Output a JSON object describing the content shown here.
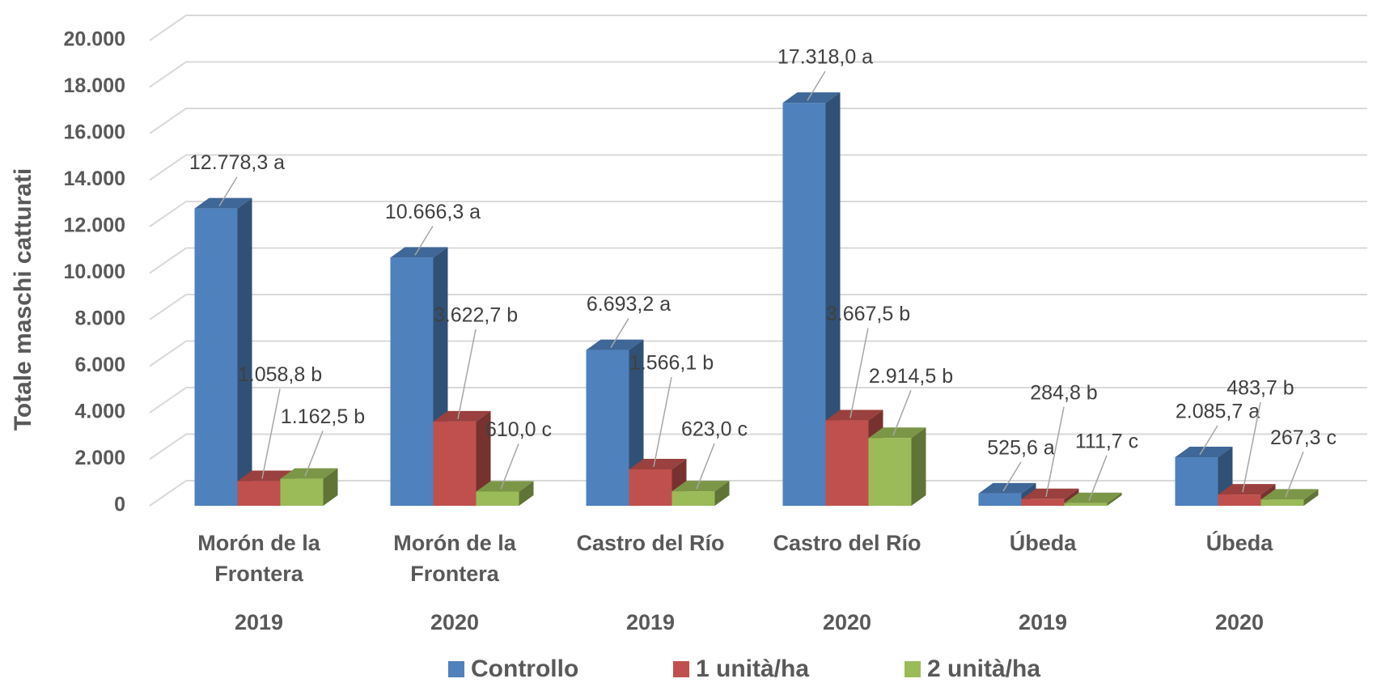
{
  "chart_data": {
    "type": "bar3d",
    "y_label": "Totale maschi catturati",
    "categories": [
      "Morón de la Frontera",
      "Morón de la Frontera",
      "Castro del Río",
      "Castro del Río",
      "Úbeda",
      "Úbeda"
    ],
    "years": [
      "2019",
      "2020",
      "2019",
      "2020",
      "2019",
      "2020"
    ],
    "series": [
      {
        "name": "Controllo",
        "color": "#4f81bd",
        "values": [
          12778.3,
          10666.3,
          6693.2,
          17318.0,
          525.6,
          2085.7
        ],
        "value_labels": [
          "12.778,3 a",
          "10.666,3 a",
          "6.693,2 a",
          "17.318,0 a",
          "525,6 a",
          "2.085,7 a"
        ]
      },
      {
        "name": "1 unità/ha",
        "color": "#c0504d",
        "values": [
          1058.8,
          3622.7,
          1566.1,
          3667.5,
          284.8,
          483.7
        ],
        "value_labels": [
          "1.058,8 b",
          "3.622,7 b",
          "1.566,1 b",
          "3.667,5 b",
          "284,8 b",
          "483,7 b"
        ]
      },
      {
        "name": "2 unità/ha",
        "color": "#9bbb59",
        "values": [
          1162.5,
          610.0,
          623.0,
          2914.5,
          111.7,
          267.3
        ],
        "value_labels": [
          "1.162,5 b",
          "610,0 c",
          "623,0 c",
          "2.914,5 b",
          "111,7 c",
          "267,3 c"
        ]
      }
    ],
    "ylim": [
      0,
      20000
    ],
    "yticks": [
      0,
      {
        "value": 2000,
        "label": "2.000"
      },
      {
        "value": 4000,
        "label": "4.000"
      },
      {
        "value": 6000,
        "label": "6.000"
      },
      {
        "value": 8000,
        "label": "8.000"
      },
      {
        "value": 10000,
        "label": "10.000"
      },
      {
        "value": 12000,
        "label": "12.000"
      },
      {
        "value": 14000,
        "label": "14.000"
      },
      {
        "value": 16000,
        "label": "16.000"
      },
      {
        "value": 18000,
        "label": "18.000"
      },
      {
        "value": 20000,
        "label": "20.000"
      }
    ],
    "grid": true,
    "legend": "bottom"
  }
}
